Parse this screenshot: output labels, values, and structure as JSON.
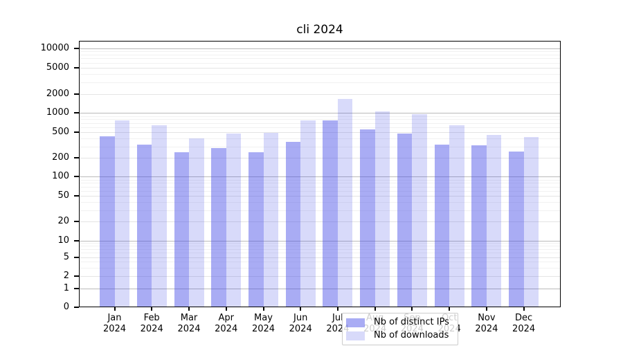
{
  "title": "cli 2024",
  "legend": {
    "items": [
      {
        "label": "Nb of distinct IPs",
        "color": "rgba(72,78,232,0.47)"
      },
      {
        "label": "Nb of downloads",
        "color": "rgba(72,78,232,0.21)"
      }
    ]
  },
  "colors": {
    "bar_distinct_ips": "rgba(72,78,232,0.47)",
    "bar_downloads": "rgba(72,78,232,0.21)",
    "grid_major_pow10": "#b9b9b9",
    "grid_major": "#e4e4e4",
    "grid_minor": "#f1f1f1",
    "axis_frame": "#000000",
    "text": "#000000",
    "legend_border": "#cccccc",
    "legend_bg": "rgba(255,255,255,0.8)"
  },
  "chart_data": {
    "type": "bar",
    "title": "cli 2024",
    "categories": [
      "Jan 2024",
      "Feb 2024",
      "Mar 2024",
      "Apr 2024",
      "May 2024",
      "Jun 2024",
      "Jul 2024",
      "Aug 2024",
      "Sep 2024",
      "Oct 2024",
      "Nov 2024",
      "Dec 2024"
    ],
    "series": [
      {
        "name": "Nb of distinct IPs",
        "color": "rgba(72,78,232,0.47)",
        "values": [
          435,
          320,
          240,
          285,
          240,
          355,
          760,
          550,
          480,
          320,
          310,
          250
        ]
      },
      {
        "name": "Nb of downloads",
        "color": "rgba(72,78,232,0.21)",
        "values": [
          770,
          645,
          400,
          480,
          495,
          760,
          1650,
          1060,
          960,
          650,
          455,
          420
        ]
      }
    ],
    "xlabel": "",
    "ylabel": "",
    "yscale": "log-with-zero",
    "yticks": [
      10000,
      5000,
      2000,
      1000,
      500,
      200,
      100,
      50,
      20,
      10,
      5,
      2,
      1,
      0
    ],
    "ylim": [
      0,
      13000
    ],
    "grid": true,
    "legend_position": "lower center inside plot"
  }
}
